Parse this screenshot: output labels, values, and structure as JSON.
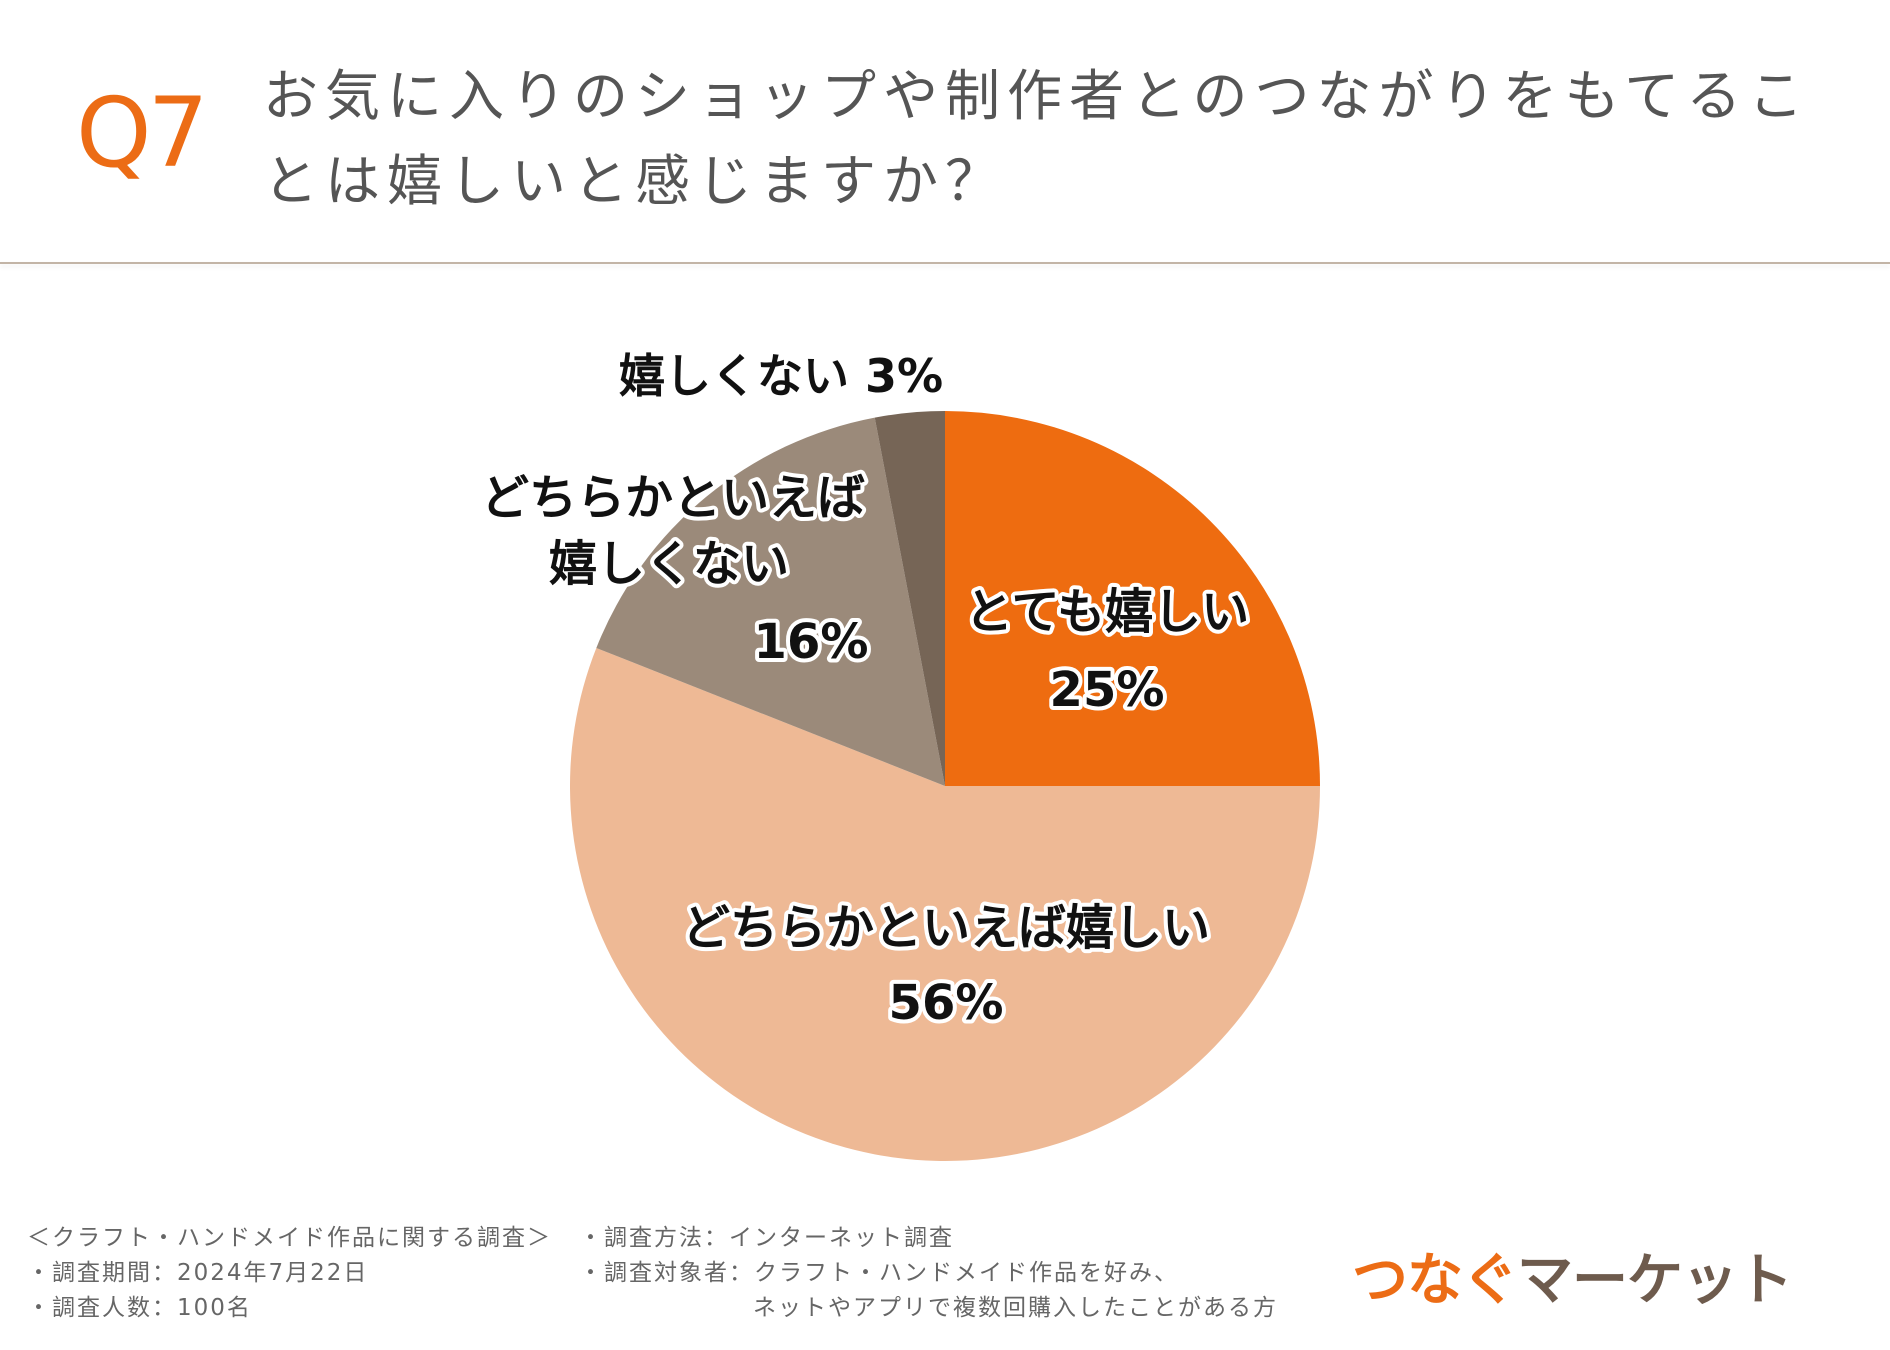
{
  "header": {
    "question_number": "Q7"
  },
  "chart_data": {
    "type": "pie",
    "title_lines": [
      "お気に入りのショップや制作者とのつながりをもてるこ",
      "とは嬉しいと感じますか？"
    ],
    "unit": "%",
    "slices": [
      {
        "label_lines": [
          "とても嬉しい"
        ],
        "value": 25,
        "value_label": "25%",
        "color": "#EE6C10"
      },
      {
        "label_lines": [
          "どちらかといえば嬉しい"
        ],
        "value": 56,
        "value_label": "56%",
        "color": "#EEB995"
      },
      {
        "label_lines": [
          "どちらかといえば",
          "嬉しくない"
        ],
        "value": 16,
        "value_label": "16%",
        "color": "#9B8A7A"
      },
      {
        "label_lines": [
          "嬉しくない"
        ],
        "value": 3,
        "value_label": "3%",
        "color": "#766556"
      }
    ]
  },
  "footer": {
    "survey_title": "＜クラフト・ハンドメイド作品に関する調査＞",
    "period": "・調査期間：2024年7月22日",
    "count": "・調査人数：100名",
    "method": "・調査方法：インターネット調査",
    "target_line1": "・調査対象者：クラフト・ハンドメイド作品を好み、",
    "target_line2": "ネットやアプリで複数回購入したことがある方"
  },
  "logo": {
    "part1": "つなぐ",
    "part2": "マーケット"
  },
  "colors": {
    "accent": "#EC6C15",
    "logo_brown": "#6E5B4D"
  }
}
